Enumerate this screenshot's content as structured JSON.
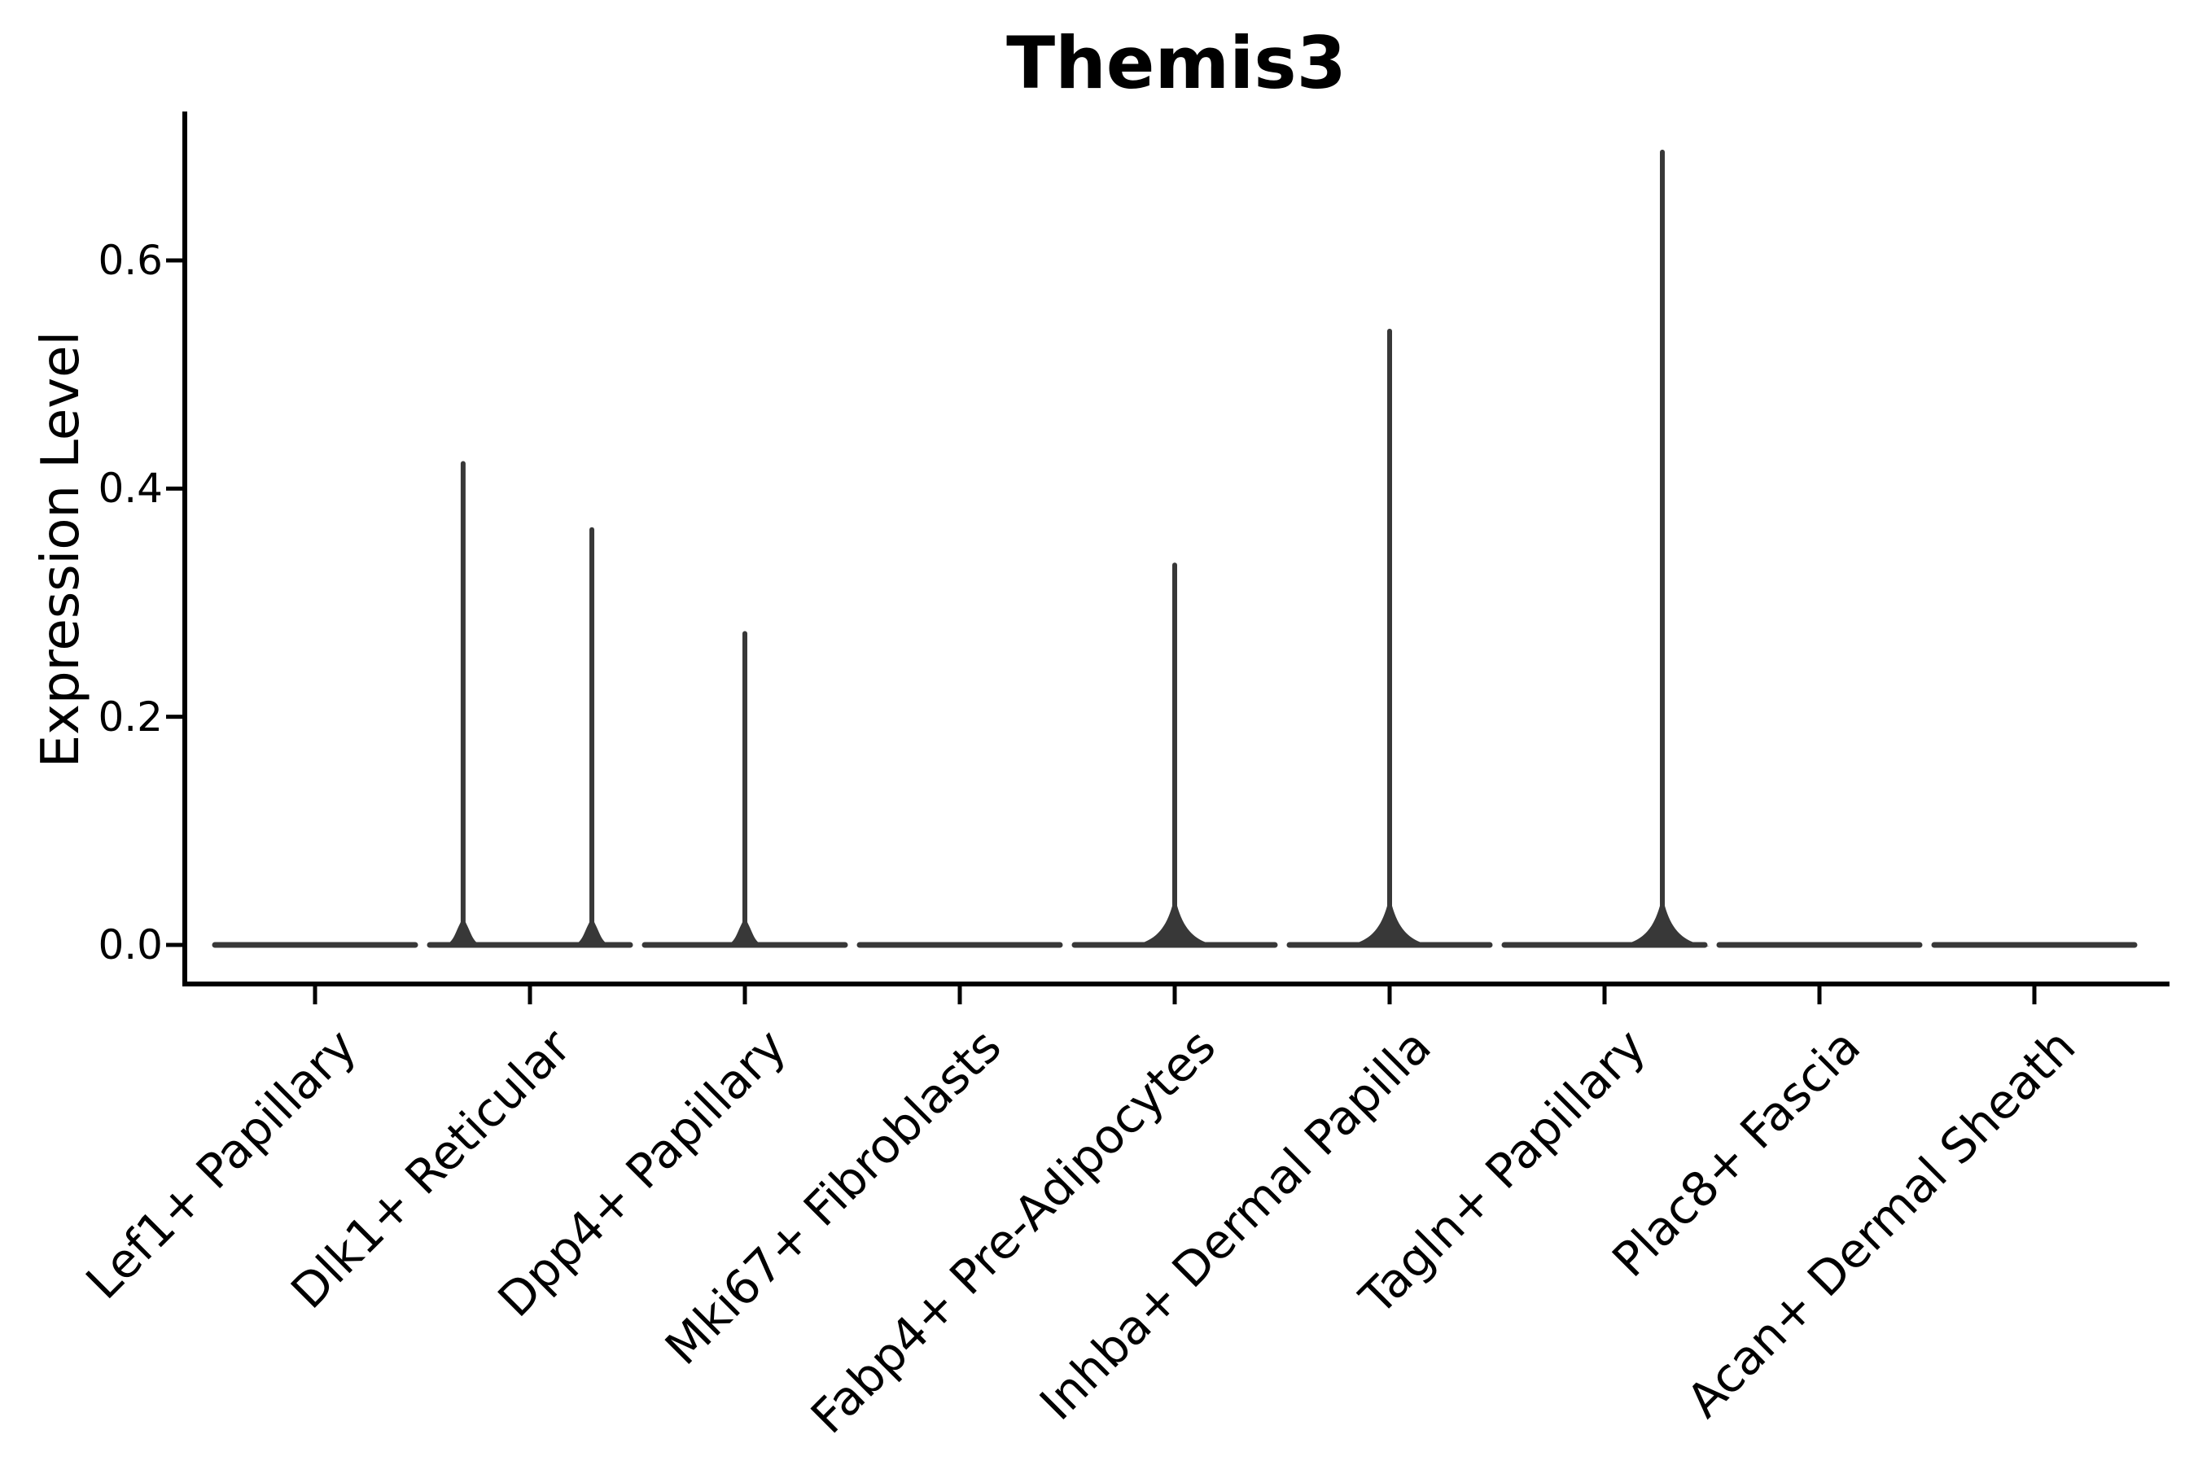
{
  "title": "Themis3",
  "ylabel": "Expression Level",
  "colors": {
    "violin": "#383838",
    "axis": "#000000",
    "text": "#000000",
    "background": "#ffffff"
  },
  "chart_data": {
    "type": "violin",
    "title": "Themis3",
    "xlabel": "",
    "ylabel": "Expression Level",
    "ylim": [
      -0.035,
      0.729
    ],
    "y_ticks": [
      0.0,
      0.2,
      0.4,
      0.6
    ],
    "y_tick_labels": [
      "0.0",
      "0.2",
      "0.4",
      "0.6"
    ],
    "grid": false,
    "legend": "none",
    "categories": [
      "Lef1+ Papillary",
      "Dlk1+ Reticular",
      "Dpp4+ Papillary",
      "Mki67+ Fibroblasts",
      "Fabp4+ Pre-Adipocytes",
      "Inhba+ Dermal Papilla",
      "Tagln+ Papillary",
      "Plac8+ Fascia",
      "Acan+ Dermal Sheath"
    ],
    "violins": [
      {
        "category": "Lef1+ Papillary",
        "base": 0.0,
        "spikes": []
      },
      {
        "category": "Dlk1+ Reticular",
        "base": 0.0,
        "spikes": [
          {
            "offset_frac": -0.311,
            "value": 0.422,
            "flare": "small"
          },
          {
            "offset_frac": 0.288,
            "value": 0.364,
            "flare": "small"
          }
        ]
      },
      {
        "category": "Dpp4+ Papillary",
        "base": 0.0,
        "spikes": [
          {
            "offset_frac": 0.0,
            "value": 0.273,
            "flare": "small"
          }
        ]
      },
      {
        "category": "Mki67+ Fibroblasts",
        "base": 0.0,
        "spikes": []
      },
      {
        "category": "Fabp4+ Pre-Adipocytes",
        "base": 0.0,
        "spikes": [
          {
            "offset_frac": 0.0,
            "value": 0.333,
            "flare": "large"
          }
        ]
      },
      {
        "category": "Inhba+ Dermal Papilla",
        "base": 0.0,
        "spikes": [
          {
            "offset_frac": 0.0,
            "value": 0.538,
            "flare": "large"
          }
        ]
      },
      {
        "category": "Tagln+ Papillary",
        "base": 0.0,
        "spikes": [
          {
            "offset_frac": 0.269,
            "value": 0.695,
            "flare": "large"
          }
        ]
      },
      {
        "category": "Plac8+ Fascia",
        "base": 0.0,
        "spikes": []
      },
      {
        "category": "Acan+ Dermal Sheath",
        "base": 0.0,
        "spikes": []
      }
    ]
  }
}
